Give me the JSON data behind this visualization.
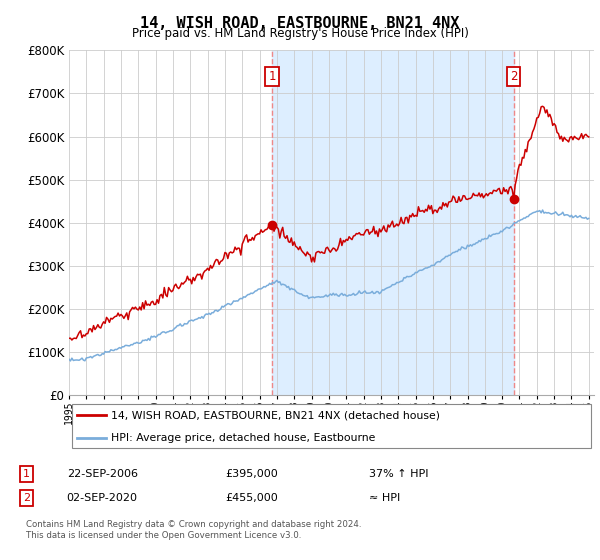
{
  "title": "14, WISH ROAD, EASTBOURNE, BN21 4NX",
  "subtitle": "Price paid vs. HM Land Registry's House Price Index (HPI)",
  "sale1_date": "22-SEP-2006",
  "sale1_price": 395000,
  "sale1_label": "37% ↑ HPI",
  "sale2_date": "02-SEP-2020",
  "sale2_price": 455000,
  "sale2_label": "≈ HPI",
  "legend_label_red": "14, WISH ROAD, EASTBOURNE, BN21 4NX (detached house)",
  "legend_label_blue": "HPI: Average price, detached house, Eastbourne",
  "footnote": "Contains HM Land Registry data © Crown copyright and database right 2024.\nThis data is licensed under the Open Government Licence v3.0.",
  "red_color": "#cc0000",
  "blue_color": "#7aaddb",
  "shade_color": "#ddeeff",
  "dashed_color": "#ee8888",
  "ylim": [
    0,
    800000
  ],
  "yticks": [
    0,
    100000,
    200000,
    300000,
    400000,
    500000,
    600000,
    700000,
    800000
  ],
  "sale1_x": 2006.72,
  "sale2_x": 2020.67,
  "xmin": 1995,
  "xmax": 2025.3
}
